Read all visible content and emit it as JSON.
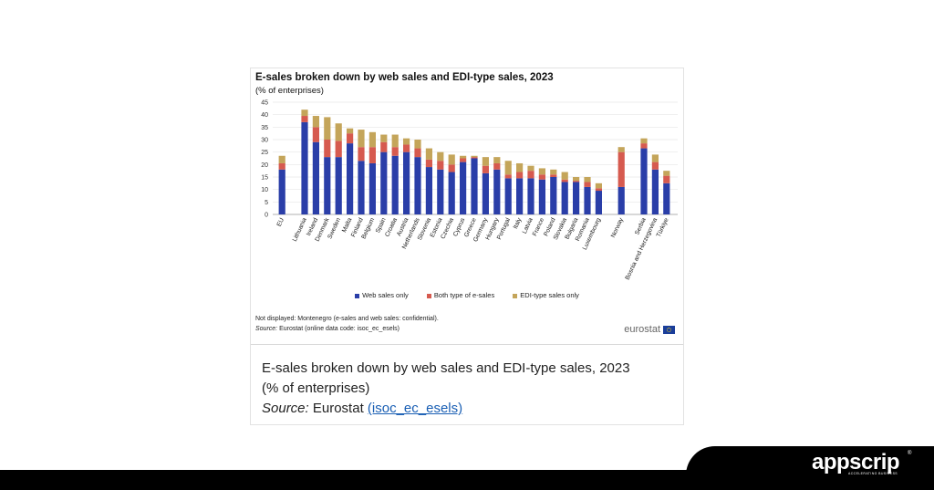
{
  "chart_data": {
    "type": "bar",
    "stacked": true,
    "title": "E-sales broken down by web sales and EDI-type sales, 2023",
    "subtitle": "(% of enterprises)",
    "ylim": [
      0,
      45
    ],
    "yticks": [
      "0",
      "5",
      "10",
      "15",
      "20",
      "25",
      "30",
      "35",
      "40",
      "45"
    ],
    "grid": true,
    "legend_position": "bottom",
    "categories": [
      "EU",
      "Lithuania",
      "Ireland",
      "Denmark",
      "Sweden",
      "Malta",
      "Finland",
      "Belgium",
      "Spain",
      "Croatia",
      "Austria",
      "Netherlands",
      "Slovenia",
      "Estonia",
      "Czechia",
      "Cyprus",
      "Greece",
      "Germany",
      "Hungary",
      "Portugal",
      "Italy",
      "Latvia",
      "France",
      "Poland",
      "Slovakia",
      "Bulgaria",
      "Romania",
      "Luxembourg",
      "Norway",
      "Serbia",
      "Bosnia and Herzegovina",
      "Türkiye"
    ],
    "group_gaps_after": [
      "EU",
      "Luxembourg",
      "Norway"
    ],
    "series": [
      {
        "name": "Web sales only",
        "color": "#2a3ea8",
        "values": [
          18,
          37,
          29,
          23,
          23,
          28.5,
          21.5,
          20.5,
          25,
          23.5,
          25,
          23,
          19,
          18,
          17,
          21,
          22.5,
          16.5,
          18,
          14.5,
          14.5,
          14.5,
          14,
          15,
          13,
          13,
          11,
          9.5,
          11,
          26.5,
          18,
          12.5
        ]
      },
      {
        "name": "Both type of e-sales",
        "color": "#d65a4f",
        "values": [
          2.5,
          2.5,
          6,
          7,
          6.5,
          4,
          5.5,
          6.5,
          4,
          3.5,
          3,
          3.5,
          3,
          3.5,
          3,
          1.5,
          0.5,
          3,
          2.5,
          1.5,
          2.5,
          3,
          2,
          1,
          1,
          0.5,
          2,
          1,
          14,
          2,
          3,
          3
        ]
      },
      {
        "name": "EDI-type sales only",
        "color": "#c4a55a",
        "values": [
          3,
          2.5,
          4.5,
          9,
          7,
          2,
          7,
          6,
          3,
          5,
          2.5,
          3.5,
          4.5,
          3.5,
          4,
          1,
          0.5,
          3.5,
          2.5,
          5.5,
          3.5,
          2,
          2.5,
          2,
          3,
          1.5,
          2,
          2,
          2,
          2,
          3,
          2
        ]
      }
    ],
    "note": "Not displayed: Montenegro (e-sales and web sales: confidential).",
    "source_label": "Source:",
    "source_text": "Eurostat (online data code: isoc_ec_esels)"
  },
  "logo": {
    "text": "eurostat"
  },
  "caption": {
    "title": "E-sales broken down by web sales and EDI-type sales, 2023",
    "subtitle": "(% of enterprises)",
    "source_label": "Source:",
    "source_text": "Eurostat",
    "link_text": "(isoc_ec_esels)"
  },
  "brand": {
    "name": "appscrip",
    "tagline": "ACCELERATING BUSINESS",
    "reg": "®"
  }
}
